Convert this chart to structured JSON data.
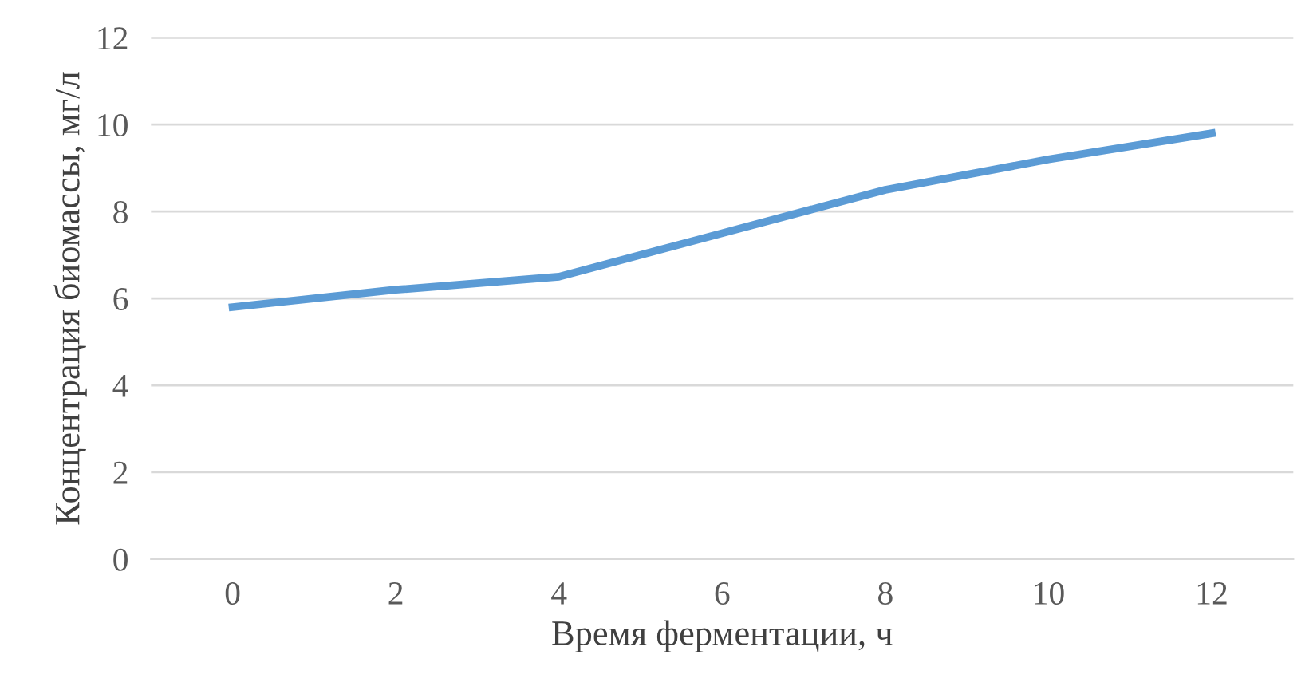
{
  "chart_data": {
    "type": "line",
    "xlabel": "Время ферментации, ч",
    "ylabel": "Концентрация биомассы, мг/л",
    "categories": [
      "0",
      "2",
      "4",
      "6",
      "8",
      "10",
      "12"
    ],
    "series": [
      {
        "color": "#5b9bd5",
        "values": [
          5.8,
          6.2,
          6.5,
          7.5,
          8.5,
          9.2,
          9.8
        ]
      }
    ],
    "ylim": [
      0,
      12
    ],
    "yticks": [
      0,
      2,
      4,
      6,
      8,
      10,
      12
    ],
    "grid": "y",
    "legend": false,
    "marker": "none",
    "line_style": "solid"
  }
}
